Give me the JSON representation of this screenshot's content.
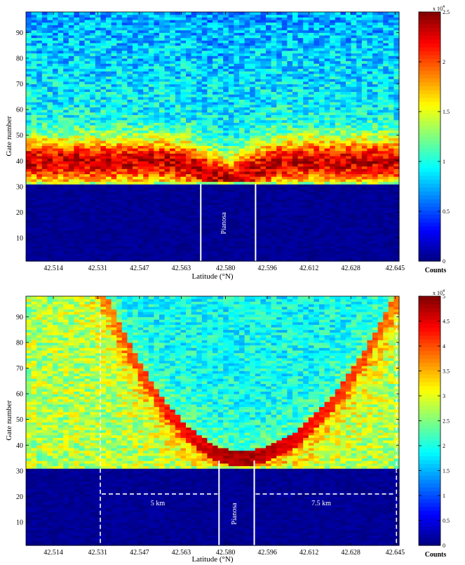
{
  "chart_data": [
    {
      "type": "heatmap",
      "panel": "top",
      "xlabel": "Latitude (°N)",
      "ylabel": "Gate number",
      "x_ticks": [
        "42.514",
        "42.531",
        "42.547",
        "42.563",
        "42.580",
        "42.596",
        "42.612",
        "42.628",
        "42.645"
      ],
      "x_tick_values": [
        42.514,
        42.531,
        42.547,
        42.563,
        42.58,
        42.596,
        42.612,
        42.628,
        42.645
      ],
      "xlim": [
        42.5035,
        42.6465
      ],
      "y_ticks": [
        "10",
        "20",
        "30",
        "40",
        "50",
        "60",
        "70",
        "80",
        "90"
      ],
      "y_tick_values": [
        10,
        20,
        30,
        40,
        50,
        60,
        70,
        80,
        90
      ],
      "ylim": [
        1,
        98
      ],
      "surface_gate": 31,
      "hot_layer": {
        "center_gate": 40,
        "half_width": 9,
        "dip_gate_at_island": 33
      },
      "colorbar": {
        "label": "Counts",
        "ticks": [
          "0",
          "0.5",
          "1",
          "1.5",
          "2",
          "2.5"
        ],
        "tick_values": [
          0,
          0.5,
          1,
          1.5,
          2,
          2.5
        ],
        "range": [
          0,
          2.5
        ],
        "exponent": "x 10",
        "exponent_power": "4",
        "colormap": "jet"
      },
      "annotations": [
        {
          "text": "Pianosa",
          "x_from": 42.5705,
          "x_to": 42.5915
        }
      ],
      "reference_lines": [
        42.5705,
        42.5915
      ]
    },
    {
      "type": "heatmap",
      "panel": "bottom",
      "xlabel": "Latitude (°N)",
      "ylabel": "Gate number",
      "x_ticks": [
        "42.514",
        "42.531",
        "42.547",
        "42.563",
        "42.580",
        "42.596",
        "42.612",
        "42.628",
        "42.645"
      ],
      "x_tick_values": [
        42.514,
        42.531,
        42.547,
        42.563,
        42.58,
        42.596,
        42.612,
        42.628,
        42.645
      ],
      "xlim": [
        42.5035,
        42.6465
      ],
      "y_ticks": [
        "10",
        "20",
        "30",
        "40",
        "50",
        "60",
        "70",
        "80",
        "90"
      ],
      "y_tick_values": [
        10,
        20,
        30,
        40,
        50,
        60,
        70,
        80,
        90
      ],
      "ylim": [
        1,
        98
      ],
      "surface_gate": 31,
      "arc": {
        "center_latitude": 42.586,
        "min_gate": 35,
        "edge_gate": 97,
        "band_half_width": 3
      },
      "colorbar": {
        "label": "Counts",
        "ticks": [
          "0",
          "0.5",
          "1",
          "1.5",
          "2",
          "2.5",
          "3",
          "3.5",
          "4",
          "4.5",
          "5"
        ],
        "tick_values": [
          0,
          0.5,
          1,
          1.5,
          2,
          2.5,
          3,
          3.5,
          4,
          4.5,
          5
        ],
        "range": [
          0,
          5
        ],
        "exponent": "x 10",
        "exponent_power": "4",
        "colormap": "jet"
      },
      "annotations": [
        {
          "text": "Pianosa",
          "x_from": 42.5775,
          "x_to": 42.591
        },
        {
          "text": "5 km",
          "x_from": 42.532,
          "x_to": 42.5775,
          "gate": 21
        },
        {
          "text": "7.5 km",
          "x_from": 42.591,
          "x_to": 42.6455,
          "gate": 21
        }
      ],
      "reference_lines": [
        42.5775,
        42.591
      ],
      "dashed_lines": [
        42.532,
        42.6455
      ]
    }
  ]
}
